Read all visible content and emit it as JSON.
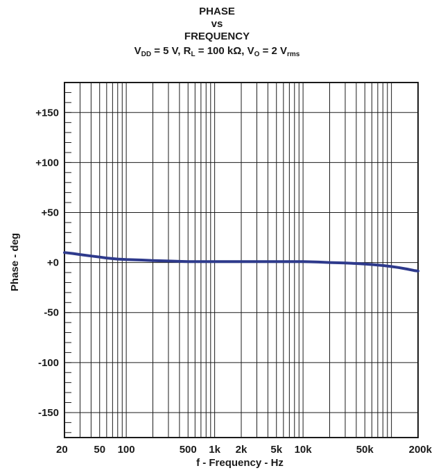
{
  "chart_data": {
    "type": "line",
    "title_lines": [
      "PHASE",
      "vs",
      "FREQUENCY"
    ],
    "condition": {
      "vdd_main": "V",
      "vdd_sub": "DD",
      "vdd_value": " = 5 V, ",
      "rl_main": "R",
      "rl_sub": "L",
      "rl_value": " = 100 kΩ, ",
      "vo_main": "V",
      "vo_sub": "O",
      "vo_value": " = 2 V",
      "vo_unit_sub": "rms"
    },
    "xlabel": "f - Frequency - Hz",
    "ylabel": "Phase - deg",
    "x_scale": "log",
    "xlim": [
      20,
      200000
    ],
    "ylim": [
      -175,
      180
    ],
    "x_ticks": [
      {
        "value": 20,
        "label": "20"
      },
      {
        "value": 50,
        "label": "50"
      },
      {
        "value": 100,
        "label": "100"
      },
      {
        "value": 500,
        "label": "500"
      },
      {
        "value": 1000,
        "label": "1k"
      },
      {
        "value": 2000,
        "label": "2k"
      },
      {
        "value": 5000,
        "label": "5k"
      },
      {
        "value": 10000,
        "label": "10k"
      },
      {
        "value": 50000,
        "label": "50k"
      },
      {
        "value": 200000,
        "label": "200k"
      }
    ],
    "y_ticks": [
      {
        "value": 150,
        "label": "+150"
      },
      {
        "value": 100,
        "label": "+100"
      },
      {
        "value": 50,
        "label": "+50"
      },
      {
        "value": 0,
        "label": "+0"
      },
      {
        "value": -50,
        "label": "-50"
      },
      {
        "value": -100,
        "label": "-100"
      },
      {
        "value": -150,
        "label": "-150"
      }
    ],
    "y_minor_step": 10,
    "grid": true,
    "line_color": "#2e3a8c",
    "series": [
      {
        "x": [
          20,
          25,
          30,
          40,
          50,
          60,
          80,
          100,
          150,
          200,
          300,
          500,
          1000,
          2000,
          5000,
          10000,
          15000,
          20000,
          30000,
          40000,
          50000,
          60000,
          70000,
          80000,
          100000,
          120000,
          150000,
          180000,
          200000
        ],
        "y": [
          10,
          9,
          8,
          6.5,
          5.5,
          4.5,
          3.5,
          3,
          2.5,
          2,
          1.5,
          1,
          1,
          1,
          1,
          1,
          0.5,
          0,
          -0.5,
          -1,
          -1.5,
          -2,
          -2.5,
          -3,
          -4,
          -5,
          -6.5,
          -8,
          -8.5
        ]
      }
    ]
  }
}
